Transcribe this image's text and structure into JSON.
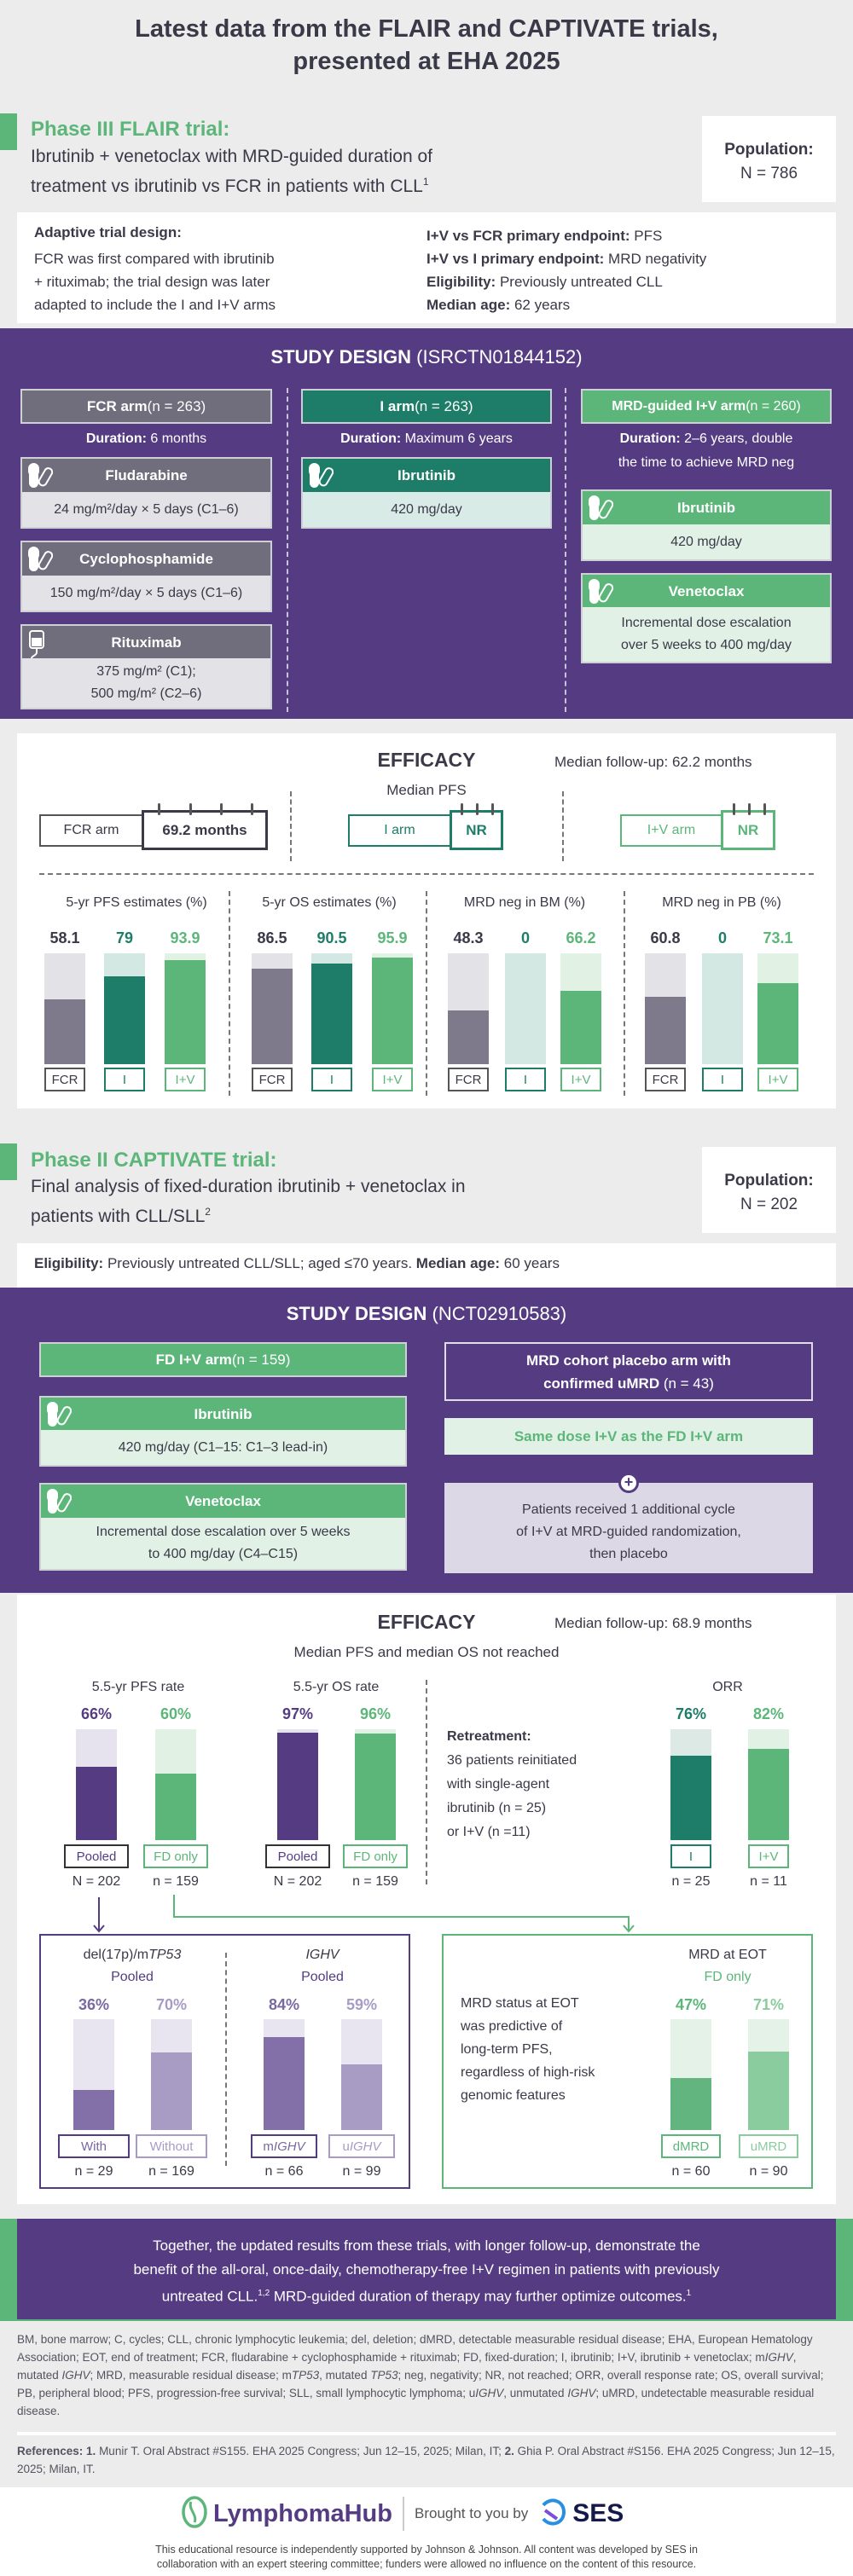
{
  "title": {
    "line1": "Latest data from the FLAIR and CAPTIVATE trials,",
    "line2": "presented at EHA 2025"
  },
  "flair": {
    "heading": "Phase III FLAIR trial:",
    "subtitle_line1": "Ibrutinib + venetoclax with MRD-guided duration of",
    "subtitle_line2": "treatment vs ibrutinib vs FCR in patients with CLL",
    "ref": "1",
    "population_label": "Population:",
    "population_value": "N = 786",
    "design_heading": "Adaptive trial design:",
    "design_lines": [
      "FCR was first compared with ibrutinib",
      "+ rituximab; the trial design was later",
      "adapted to include the I and I+V arms"
    ],
    "facts": [
      {
        "label": "I+V vs FCR primary endpoint:",
        "value": " PFS"
      },
      {
        "label": "I+V vs I primary endpoint:",
        "value": " MRD negativity"
      },
      {
        "label": "Eligibility:",
        "value": " Previously untreated CLL"
      },
      {
        "label": "Median age:",
        "value": " 62 years"
      }
    ],
    "study_design": {
      "title": "STUDY DESIGN",
      "id": " (ISRCTN01844152)",
      "arms": [
        {
          "name": "FCR arm",
          "n": " (n = 263)",
          "duration_label": "Duration:",
          "duration": " 6 months",
          "drugs": [
            {
              "name": "Fludarabine",
              "icon": "pill-icon",
              "dose": "24 mg/m²/day × 5 days (C1–6)"
            },
            {
              "name": "Cyclophosphamide",
              "icon": "pill-icon",
              "dose": "150 mg/m²/day × 5 days (C1–6)"
            },
            {
              "name": "Rituximab",
              "icon": "iv-bag-icon",
              "dose": "375 mg/m² (C1);",
              "dose2": "500 mg/m² (C2–6)"
            }
          ]
        },
        {
          "name": "I arm",
          "n": " (n = 263)",
          "duration_label": "Duration:",
          "duration": " Maximum 6 years",
          "drugs": [
            {
              "name": "Ibrutinib",
              "icon": "pill-icon",
              "dose": "420 mg/day"
            }
          ]
        },
        {
          "name": "MRD-guided I+V arm",
          "n": " (n = 260)",
          "duration_label": "Duration:",
          "duration": " 2–6 years, double",
          "duration2": "the time to achieve MRD neg",
          "drugs": [
            {
              "name": "Ibrutinib",
              "icon": "pill-icon",
              "dose": "420 mg/day"
            },
            {
              "name": "Venetoclax",
              "icon": "pill-icon",
              "dose": "Incremental dose escalation",
              "dose2": "over 5 weeks to 400 mg/day"
            }
          ]
        }
      ]
    },
    "efficacy": {
      "title": "EFFICACY",
      "followup": "Median follow-up: 62.2 months",
      "median_pfs_label": "Median PFS",
      "median_pfs": [
        {
          "arm": "FCR arm",
          "value": "69.2 months"
        },
        {
          "arm": "I arm",
          "value": "NR"
        },
        {
          "arm": "I+V arm",
          "value": "NR"
        }
      ]
    }
  },
  "captivate": {
    "heading": "Phase II CAPTIVATE trial:",
    "subtitle_line1": "Final analysis of fixed-duration ibrutinib + venetoclax in",
    "subtitle_line2": "patients with CLL/SLL",
    "ref": "2",
    "population_label": "Population:",
    "population_value": "N = 202",
    "eligibility_label": "Eligibility:",
    "eligibility": " Previously untreated CLL/SLL; aged ≤70 years. ",
    "age_label": "Median age:",
    "age": " 60 years",
    "study_design": {
      "title": "STUDY DESIGN",
      "id": " (NCT02910583)",
      "fd_arm": {
        "name": "FD I+V arm",
        "n": " (n = 159)",
        "drugs": [
          {
            "name": "Ibrutinib",
            "icon": "pill-icon",
            "dose": "420 mg/day (C1–15: C1–3 lead-in)"
          },
          {
            "name": "Venetoclax",
            "icon": "pill-icon",
            "dose": "Incremental dose escalation over 5 weeks",
            "dose2": "to 400 mg/day (C4–C15)"
          }
        ]
      },
      "mrd_arm": {
        "name_line1": "MRD cohort placebo arm with",
        "name_line2": "confirmed uMRD",
        "n": " (n = 43)",
        "same_dose": "Same dose I+V as the FD I+V arm",
        "plus": "+",
        "note": [
          "Patients received 1 additional cycle",
          "of I+V at MRD-guided randomization,",
          "then placebo"
        ]
      }
    },
    "efficacy": {
      "title": "EFFICACY",
      "followup": "Median follow-up: 68.9 months",
      "subtitle": "Median PFS and median OS not reached",
      "retreatment_heading": "Retreatment:",
      "retreatment_lines": [
        "36 patients reinitiated",
        "with single-agent",
        "ibrutinib (n = 25)",
        "or I+V (n  =11)"
      ],
      "mrd_text": [
        "MRD status at EOT",
        "was predictive of",
        "long-term PFS,",
        "regardless of high-risk",
        "genomic features"
      ]
    }
  },
  "conclusion": {
    "line1": "Together, the updated results from these trials, with longer follow-up, demonstrate the",
    "line2": "benefit of the all-oral, once-daily, chemotherapy-free I+V regimen in patients with previously",
    "line3a": "untreated CLL.",
    "sup_a": "1,2",
    "line3b": " MRD-guided duration of therapy may further optimize outcomes.",
    "sup_b": "1"
  },
  "abbreviations": "BM, bone marrow; C, cycles; CLL, chronic lymphocytic leukemia; del, deletion; dMRD, detectable measurable residual disease; EHA, European Hematology Association; EOT, end of treatment; FCR, fludarabine + cyclophosphamide + rituximab; FD, fixed-duration;  I, ibrutinib; I+V, ibrutinib + venetoclax; mIGHV, mutated IGHV; MRD, measurable residual disease; mTP53, mutated TP53; neg, negativity; NR, not reached; ORR, overall response rate; OS, overall survival; PB, peripheral blood; PFS, progression-free survival; SLL, small lymphocytic lymphoma; uIGHV, unmutated IGHV; uMRD, undetectable measurable residual disease.",
  "references": {
    "label": "References:",
    "r1n": " 1.",
    "r1": " Munir T. Oral Abstract #S155. EHA 2025 Congress; Jun 12–15, 2025; Milan, IT;",
    "r2n": " 2.",
    "r2": " Ghia P. Oral Abstract #S156. EHA 2025 Congress; Jun 12–15, 2025; Milan, IT."
  },
  "footer": {
    "logo": "LymphomaHub",
    "brought": "Brought to you by",
    "ses": "SES",
    "disclaimer1": "This educational resource is independently supported by Johnson & Johnson. All content was developed by SES in",
    "disclaimer2": "collaboration with an expert steering committee; funders were allowed no influence on the content of this resource."
  },
  "colors": {
    "purple": "#553c82",
    "dark_green": "#1e7d68",
    "green": "#5cb67a",
    "gray": "#7e7a8c"
  },
  "chart_data": [
    {
      "type": "bar",
      "id": "flair_pfs",
      "title": "5-yr PFS estimates (%)",
      "categories": [
        "FCR",
        "I",
        "I+V"
      ],
      "values": [
        58.1,
        79,
        93.9
      ],
      "ylim": [
        0,
        100
      ]
    },
    {
      "type": "bar",
      "id": "flair_os",
      "title": "5-yr OS estimates (%)",
      "categories": [
        "FCR",
        "I",
        "I+V"
      ],
      "values": [
        86.5,
        90.5,
        95.9
      ],
      "ylim": [
        0,
        100
      ]
    },
    {
      "type": "bar",
      "id": "flair_bm",
      "title": "MRD neg in BM (%)",
      "categories": [
        "FCR",
        "I",
        "I+V"
      ],
      "values": [
        48.3,
        0,
        66.2
      ],
      "ylim": [
        0,
        100
      ]
    },
    {
      "type": "bar",
      "id": "flair_pb",
      "title": "MRD neg in PB (%)",
      "categories": [
        "FCR",
        "I",
        "I+V"
      ],
      "values": [
        60.8,
        0,
        73.1
      ],
      "ylim": [
        0,
        100
      ]
    },
    {
      "type": "bar",
      "id": "cap_pfs",
      "title": "5.5-yr PFS rate",
      "categories": [
        "Pooled",
        "FD only"
      ],
      "values": [
        66,
        60
      ],
      "labels": [
        "66%",
        "60%"
      ],
      "n": [
        "N = 202",
        "n = 159"
      ],
      "ylim": [
        0,
        100
      ]
    },
    {
      "type": "bar",
      "id": "cap_os",
      "title": "5.5-yr OS rate",
      "categories": [
        "Pooled",
        "FD only"
      ],
      "values": [
        97,
        96
      ],
      "labels": [
        "97%",
        "96%"
      ],
      "n": [
        "N = 202",
        "n = 159"
      ],
      "ylim": [
        0,
        100
      ]
    },
    {
      "type": "bar",
      "id": "cap_orr",
      "title": "ORR",
      "categories": [
        "I",
        "I+V"
      ],
      "values": [
        76,
        82
      ],
      "labels": [
        "76%",
        "82%"
      ],
      "n": [
        "n = 25",
        "n = 11"
      ],
      "ylim": [
        0,
        100
      ]
    },
    {
      "type": "bar",
      "id": "cap_tp53",
      "title": "del(17p)/mTP53",
      "subtitle": "Pooled",
      "categories": [
        "With",
        "Without"
      ],
      "values": [
        36,
        70
      ],
      "labels": [
        "36%",
        "70%"
      ],
      "n": [
        "n = 29",
        "n = 169"
      ],
      "ylim": [
        0,
        100
      ]
    },
    {
      "type": "bar",
      "id": "cap_ighv",
      "title": "IGHV",
      "subtitle": "Pooled",
      "categories": [
        "mIGHV",
        "uIGHV"
      ],
      "values": [
        84,
        59
      ],
      "labels": [
        "84%",
        "59%"
      ],
      "n": [
        "n = 66",
        "n = 99"
      ],
      "ylim": [
        0,
        100
      ]
    },
    {
      "type": "bar",
      "id": "cap_mrd",
      "title": "MRD at EOT",
      "subtitle": "FD only",
      "categories": [
        "dMRD",
        "uMRD"
      ],
      "values": [
        47,
        71
      ],
      "labels": [
        "47%",
        "71%"
      ],
      "n": [
        "n = 60",
        "n = 90"
      ],
      "ylim": [
        0,
        100
      ]
    }
  ]
}
